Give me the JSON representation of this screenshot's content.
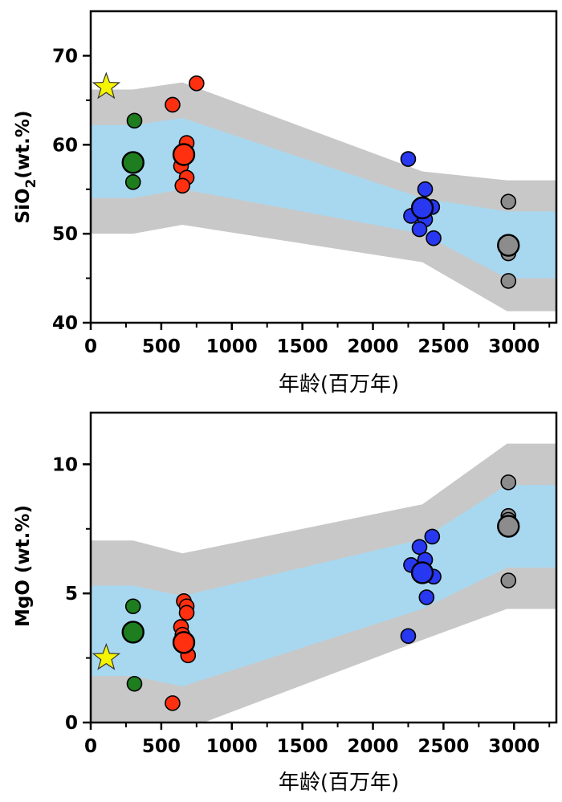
{
  "chart_data": [
    {
      "type": "scatter",
      "title": "",
      "xlabel": "年龄(百万年)",
      "ylabel_main": "SiO",
      "ylabel_sub": "2",
      "ylabel_rest": "(wt.%)",
      "xlim": [
        0,
        3300
      ],
      "ylim": [
        40,
        75
      ],
      "xticks": [
        0,
        500,
        1000,
        1500,
        2000,
        2500,
        3000
      ],
      "yticks": [
        40,
        50,
        60,
        70
      ],
      "envelope_outer": {
        "color": "#c8c8c8",
        "upper": [
          [
            0,
            66.2
          ],
          [
            300,
            66.2
          ],
          [
            650,
            67.0
          ],
          [
            2350,
            57.0
          ],
          [
            2950,
            56.0
          ],
          [
            3300,
            56.0
          ]
        ],
        "lower": [
          [
            0,
            50.0
          ],
          [
            300,
            50.0
          ],
          [
            650,
            51.0
          ],
          [
            2350,
            46.8
          ],
          [
            2950,
            41.3
          ],
          [
            3300,
            41.3
          ]
        ]
      },
      "envelope_inner": {
        "color": "#a8d8f0",
        "upper": [
          [
            0,
            62.2
          ],
          [
            300,
            62.2
          ],
          [
            650,
            63.0
          ],
          [
            2350,
            54.0
          ],
          [
            2950,
            52.5
          ],
          [
            3300,
            52.5
          ]
        ],
        "lower": [
          [
            0,
            54.0
          ],
          [
            300,
            54.0
          ],
          [
            650,
            55.0
          ],
          [
            2350,
            50.0
          ],
          [
            2950,
            45.0
          ],
          [
            3300,
            45.0
          ]
        ]
      },
      "series": [
        {
          "color": "#1e7d1e",
          "points": [
            [
              310,
              62.7
            ],
            [
              300,
              55.8
            ]
          ],
          "mean": [
            300,
            58.0
          ]
        },
        {
          "color": "#ff3010",
          "points": [
            [
              580,
              64.5
            ],
            [
              750,
              66.9
            ],
            [
              680,
              60.2
            ],
            [
              640,
              57.6
            ],
            [
              660,
              58.5
            ],
            [
              680,
              56.3
            ],
            [
              650,
              55.4
            ]
          ],
          "mean": [
            660,
            58.9
          ]
        },
        {
          "color": "#2838f0",
          "points": [
            [
              2250,
              58.4
            ],
            [
              2370,
              55.0
            ],
            [
              2420,
              53.0
            ],
            [
              2270,
              52.0
            ],
            [
              2370,
              51.6
            ],
            [
              2330,
              50.5
            ],
            [
              2430,
              49.5
            ]
          ],
          "mean": [
            2350,
            52.9
          ]
        },
        {
          "color": "#8c8c8c",
          "points": [
            [
              2960,
              53.6
            ],
            [
              2960,
              48.2
            ],
            [
              2960,
              47.8
            ],
            [
              2960,
              44.7
            ]
          ],
          "mean": [
            2960,
            48.7
          ]
        }
      ],
      "star": {
        "color": "#f5f500",
        "point": [
          110,
          66.5
        ]
      }
    },
    {
      "type": "scatter",
      "title": "",
      "xlabel": "年龄(百万年)",
      "ylabel": "MgO (wt.%)",
      "xlim": [
        0,
        3300
      ],
      "ylim": [
        0,
        12
      ],
      "xticks": [
        0,
        500,
        1000,
        1500,
        2000,
        2500,
        3000
      ],
      "yticks": [
        0,
        5,
        10
      ],
      "envelope_outer": {
        "color": "#c8c8c8",
        "upper": [
          [
            0,
            7.05
          ],
          [
            300,
            7.05
          ],
          [
            650,
            6.55
          ],
          [
            2350,
            8.45
          ],
          [
            2950,
            10.8
          ],
          [
            3300,
            10.8
          ]
        ],
        "lower": [
          [
            0,
            0
          ],
          [
            300,
            0
          ],
          [
            800,
            0
          ],
          [
            2350,
            3.2
          ],
          [
            2950,
            4.4
          ],
          [
            3300,
            4.4
          ]
        ]
      },
      "envelope_inner": {
        "color": "#a8d8f0",
        "upper": [
          [
            0,
            5.3
          ],
          [
            300,
            5.3
          ],
          [
            650,
            4.9
          ],
          [
            2350,
            7.1
          ],
          [
            2950,
            9.2
          ],
          [
            3300,
            9.2
          ]
        ],
        "lower": [
          [
            0,
            1.8
          ],
          [
            300,
            1.8
          ],
          [
            650,
            1.4
          ],
          [
            2350,
            4.4
          ],
          [
            2950,
            6.0
          ],
          [
            3300,
            6.0
          ]
        ]
      },
      "series": [
        {
          "color": "#1e7d1e",
          "points": [
            [
              300,
              4.5
            ],
            [
              310,
              1.5
            ]
          ],
          "mean": [
            300,
            3.5
          ]
        },
        {
          "color": "#ff3010",
          "points": [
            [
              660,
              4.7
            ],
            [
              680,
              4.5
            ],
            [
              680,
              4.25
            ],
            [
              640,
              3.7
            ],
            [
              650,
              3.4
            ],
            [
              670,
              3.2
            ],
            [
              690,
              2.6
            ],
            [
              580,
              0.75
            ]
          ],
          "mean": [
            660,
            3.1
          ]
        },
        {
          "color": "#2838f0",
          "points": [
            [
              2420,
              7.2
            ],
            [
              2330,
              6.8
            ],
            [
              2370,
              6.3
            ],
            [
              2270,
              6.1
            ],
            [
              2430,
              5.65
            ],
            [
              2380,
              4.85
            ],
            [
              2250,
              3.35
            ]
          ],
          "mean": [
            2350,
            5.8
          ]
        },
        {
          "color": "#8c8c8c",
          "points": [
            [
              2960,
              9.3
            ],
            [
              2960,
              8.0
            ],
            [
              2960,
              7.85
            ],
            [
              2960,
              5.5
            ]
          ],
          "mean": [
            2960,
            7.6
          ]
        }
      ],
      "star": {
        "color": "#f5f500",
        "point": [
          110,
          2.5
        ]
      }
    }
  ]
}
